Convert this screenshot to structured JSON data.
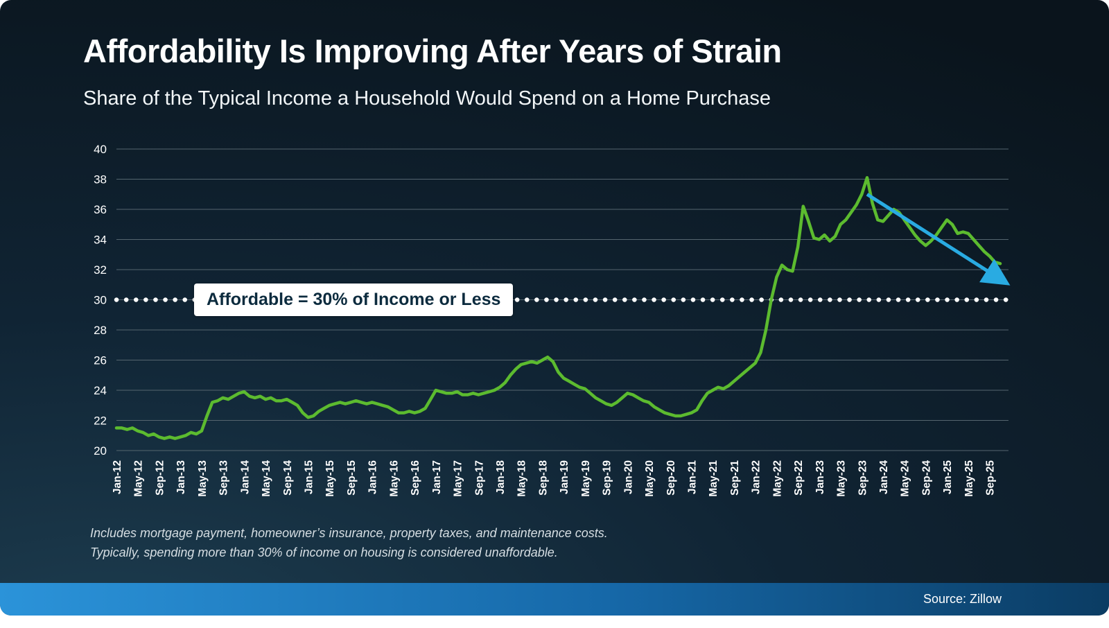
{
  "header": {
    "title": "Affordability Is Improving After Years of Strain",
    "subtitle": "Share of the Typical Income a Household Would Spend on a Home Purchase"
  },
  "chart_data": {
    "type": "line",
    "title": "Affordability Is Improving After Years of Strain",
    "subtitle": "Share of the Typical Income a Household Would Spend on a Home Purchase",
    "x_start": "Jan-12",
    "x_end": "Nov-25",
    "months_per_tick": 4,
    "x_ticks": [
      "Jan-12",
      "May-12",
      "Sep-12",
      "Jan-13",
      "May-13",
      "Sep-13",
      "Jan-14",
      "May-14",
      "Sep-14",
      "Jan-15",
      "May-15",
      "Sep-15",
      "Jan-16",
      "May-16",
      "Sep-16",
      "Jan-17",
      "May-17",
      "Sep-17",
      "Jan-18",
      "May-18",
      "Sep-18",
      "Jan-19",
      "May-19",
      "Sep-19",
      "Jan-20",
      "May-20",
      "Sep-20",
      "Jan-21",
      "May-21",
      "Sep-21",
      "Jan-22",
      "May-22",
      "Sep-22",
      "Jan-23",
      "May-23",
      "Sep-23",
      "Jan-24",
      "May-24",
      "Sep-24",
      "Jan-25",
      "May-25",
      "Sep-25"
    ],
    "values": [
      21.5,
      21.5,
      21.4,
      21.5,
      21.3,
      21.2,
      21.0,
      21.1,
      20.9,
      20.8,
      20.9,
      20.8,
      20.9,
      21.0,
      21.2,
      21.1,
      21.3,
      22.3,
      23.2,
      23.3,
      23.5,
      23.4,
      23.6,
      23.8,
      23.9,
      23.6,
      23.5,
      23.6,
      23.4,
      23.5,
      23.3,
      23.3,
      23.4,
      23.2,
      23.0,
      22.5,
      22.2,
      22.3,
      22.6,
      22.8,
      23.0,
      23.1,
      23.2,
      23.1,
      23.2,
      23.3,
      23.2,
      23.1,
      23.2,
      23.1,
      23.0,
      22.9,
      22.7,
      22.5,
      22.5,
      22.6,
      22.5,
      22.6,
      22.8,
      23.4,
      24.0,
      23.9,
      23.8,
      23.8,
      23.9,
      23.7,
      23.7,
      23.8,
      23.7,
      23.8,
      23.9,
      24.0,
      24.2,
      24.5,
      25.0,
      25.4,
      25.7,
      25.8,
      25.9,
      25.8,
      26.0,
      26.2,
      25.9,
      25.2,
      24.8,
      24.6,
      24.4,
      24.2,
      24.1,
      23.8,
      23.5,
      23.3,
      23.1,
      23.0,
      23.2,
      23.5,
      23.8,
      23.7,
      23.5,
      23.3,
      23.2,
      22.9,
      22.7,
      22.5,
      22.4,
      22.3,
      22.3,
      22.4,
      22.5,
      22.7,
      23.3,
      23.8,
      24.0,
      24.2,
      24.1,
      24.3,
      24.6,
      24.9,
      25.2,
      25.5,
      25.8,
      26.5,
      28.0,
      30.0,
      31.5,
      32.3,
      32.0,
      31.9,
      33.5,
      36.2,
      35.2,
      34.1,
      34.0,
      34.3,
      33.9,
      34.2,
      35.0,
      35.3,
      35.8,
      36.3,
      37.0,
      38.1,
      36.4,
      35.3,
      35.2,
      35.6,
      36.0,
      35.8,
      35.3,
      34.8,
      34.3,
      33.9,
      33.6,
      33.9,
      34.3,
      34.8,
      35.3,
      35.0,
      34.4,
      34.5,
      34.4,
      34.0,
      33.6,
      33.2,
      32.9,
      32.5,
      32.4
    ],
    "ylim": [
      20,
      40
    ],
    "y_ticks": [
      20,
      22,
      24,
      26,
      28,
      30,
      32,
      34,
      36,
      38,
      40
    ],
    "grid": true,
    "grid_color": "#55656f",
    "line_color": "#5cbb2f",
    "legend_position": "none",
    "threshold": {
      "value": 30,
      "label": "Affordable = 30% of Income or Less",
      "style": "dotted",
      "color": "#ffffff"
    },
    "trend_arrow": {
      "from_index": 141,
      "from_value": 37.0,
      "to_index": 166,
      "to_value": 31.2,
      "color": "#29abe2"
    }
  },
  "footnote": {
    "line1": "Includes mortgage payment, homeowner’s insurance, property taxes, and maintenance costs.",
    "line2": "Typically, spending more than 30% of income on housing is considered unaffordable."
  },
  "footer": {
    "source": "Source: Zillow"
  },
  "colors": {
    "background": "#0a141c",
    "accent_blue": "#29abe2",
    "line_green": "#5cbb2f",
    "bar_gradient_left": "#2b93d9",
    "bar_gradient_right": "#0b3c63"
  }
}
